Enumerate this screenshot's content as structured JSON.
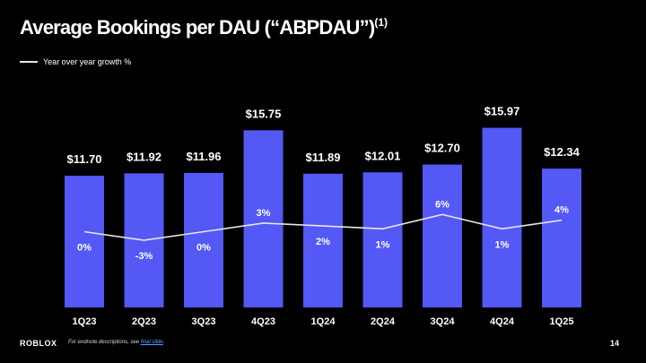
{
  "title": {
    "text": "Average Bookings per DAU (“ABPDAU”)",
    "footnote_mark": "(1)"
  },
  "legend": {
    "line_label": "Year over year growth %",
    "line_color": "#e6e6e6"
  },
  "colors": {
    "bar": "#5458f4",
    "background": "#000000",
    "text": "#ffffff"
  },
  "chart_data": {
    "type": "bar",
    "categories": [
      "1Q23",
      "2Q23",
      "3Q23",
      "4Q23",
      "1Q24",
      "2Q24",
      "3Q24",
      "4Q24",
      "1Q25"
    ],
    "series": [
      {
        "values": [
          11.7,
          11.92,
          11.96,
          15.75,
          11.89,
          12.01,
          12.7,
          15.97,
          12.34
        ],
        "labels": [
          "$11.70",
          "$11.92",
          "$11.96",
          "$15.75",
          "$11.89",
          "$12.01",
          "$12.70",
          "$15.97",
          "$12.34"
        ]
      },
      {
        "type": "line",
        "name": "Year over year growth %",
        "values": [
          0,
          -3,
          0,
          3,
          2,
          1,
          6,
          1,
          4
        ],
        "labels": [
          "0%",
          "-3%",
          "0%",
          "3%",
          "2%",
          "1%",
          "6%",
          "1%",
          "4%"
        ]
      }
    ],
    "ylim": [
      0,
      17.5
    ],
    "grid": false,
    "legend_position": "top-left"
  },
  "footer": {
    "logo": "ROBLOX",
    "note_prefix": "For endnote descriptions, see ",
    "note_link": "final slide",
    "note_suffix": ".",
    "page_number": "14"
  }
}
